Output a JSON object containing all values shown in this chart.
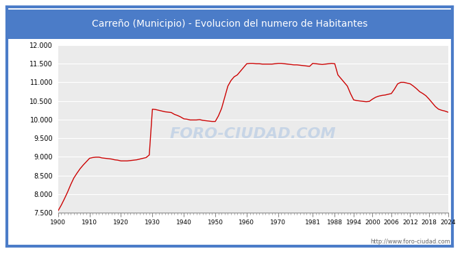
{
  "title": "Carreño (Municipio) - Evolucion del numero de Habitantes",
  "title_bg_color": "#4b7cc8",
  "title_text_color": "#ffffff",
  "line_color": "#cc0000",
  "bg_color": "#ffffff",
  "plot_bg_color": "#ebebeb",
  "grid_color": "#ffffff",
  "border_color": "#4b7cc8",
  "watermark_text": "FORO-CIUDAD.COM",
  "url_text": "http://www.foro-ciudad.com",
  "years": [
    1900,
    1901,
    1902,
    1903,
    1904,
    1905,
    1906,
    1907,
    1908,
    1909,
    1910,
    1911,
    1912,
    1913,
    1914,
    1915,
    1916,
    1917,
    1918,
    1919,
    1920,
    1921,
    1922,
    1923,
    1924,
    1925,
    1926,
    1927,
    1928,
    1929,
    1930,
    1931,
    1932,
    1933,
    1934,
    1935,
    1936,
    1937,
    1938,
    1939,
    1940,
    1941,
    1942,
    1943,
    1944,
    1945,
    1946,
    1947,
    1948,
    1949,
    1950,
    1951,
    1952,
    1953,
    1954,
    1955,
    1956,
    1957,
    1958,
    1959,
    1960,
    1961,
    1962,
    1963,
    1964,
    1965,
    1966,
    1967,
    1968,
    1969,
    1970,
    1971,
    1972,
    1973,
    1974,
    1975,
    1976,
    1977,
    1978,
    1979,
    1980,
    1981,
    1982,
    1983,
    1984,
    1985,
    1986,
    1987,
    1988,
    1989,
    1990,
    1991,
    1992,
    1993,
    1994,
    1995,
    1996,
    1997,
    1998,
    1999,
    2000,
    2001,
    2002,
    2003,
    2004,
    2005,
    2006,
    2007,
    2008,
    2009,
    2010,
    2011,
    2012,
    2013,
    2014,
    2015,
    2016,
    2017,
    2018,
    2019,
    2020,
    2021,
    2022,
    2023,
    2024
  ],
  "values": [
    7550,
    7700,
    7870,
    8050,
    8250,
    8430,
    8560,
    8680,
    8780,
    8870,
    8960,
    8980,
    8990,
    8990,
    8970,
    8960,
    8950,
    8940,
    8920,
    8910,
    8890,
    8890,
    8890,
    8900,
    8910,
    8920,
    8940,
    8960,
    8980,
    9050,
    10280,
    10270,
    10250,
    10230,
    10210,
    10200,
    10190,
    10140,
    10110,
    10070,
    10020,
    10010,
    9990,
    9990,
    9990,
    10000,
    9980,
    9970,
    9960,
    9950,
    9950,
    10100,
    10300,
    10600,
    10900,
    11050,
    11150,
    11200,
    11300,
    11400,
    11500,
    11510,
    11510,
    11500,
    11500,
    11490,
    11490,
    11490,
    11490,
    11500,
    11510,
    11510,
    11500,
    11490,
    11480,
    11470,
    11470,
    11460,
    11450,
    11440,
    11430,
    11510,
    11500,
    11490,
    11480,
    11490,
    11500,
    11510,
    11500,
    11200,
    11100,
    11000,
    10900,
    10700,
    10530,
    10510,
    10500,
    10490,
    10480,
    10490,
    10550,
    10600,
    10630,
    10650,
    10660,
    10680,
    10700,
    10820,
    10960,
    11000,
    11000,
    10980,
    10960,
    10900,
    10830,
    10750,
    10700,
    10640,
    10550,
    10450,
    10350,
    10280,
    10250,
    10230,
    10200
  ],
  "xlim": [
    1900,
    2024
  ],
  "ylim": [
    7500,
    12000
  ],
  "yticks": [
    7500,
    8000,
    8500,
    9000,
    9500,
    10000,
    10500,
    11000,
    11500,
    12000
  ],
  "xticks": [
    1900,
    1910,
    1920,
    1930,
    1940,
    1950,
    1960,
    1970,
    1981,
    1988,
    1994,
    2000,
    2006,
    2012,
    2018,
    2024
  ]
}
